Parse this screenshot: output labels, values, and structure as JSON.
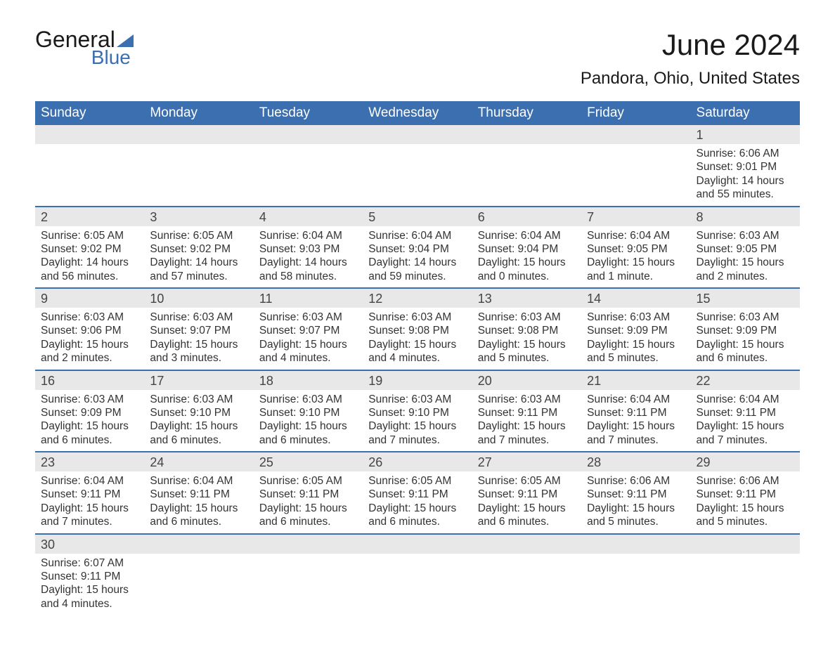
{
  "logo": {
    "text_top": "General",
    "text_bottom": "Blue",
    "accent_color": "#3b6fb0"
  },
  "title": "June 2024",
  "location": "Pandora, Ohio, United States",
  "colors": {
    "header_bg": "#3b6fb0",
    "header_text": "#ffffff",
    "daynum_bg": "#e8e8e8",
    "row_divider": "#3b6fb0",
    "body_text": "#333333",
    "page_bg": "#ffffff"
  },
  "fonts": {
    "family": "Arial",
    "title_pt": 42,
    "location_pt": 24,
    "header_pt": 19,
    "body_pt": 15.5
  },
  "day_headers": [
    "Sunday",
    "Monday",
    "Tuesday",
    "Wednesday",
    "Thursday",
    "Friday",
    "Saturday"
  ],
  "sunrise_label": "Sunrise: ",
  "sunset_label": "Sunset: ",
  "daylight_label": "Daylight: ",
  "weeks": [
    [
      null,
      null,
      null,
      null,
      null,
      null,
      {
        "n": "1",
        "sunrise": "6:06 AM",
        "sunset": "9:01 PM",
        "daylight": "14 hours and 55 minutes."
      }
    ],
    [
      {
        "n": "2",
        "sunrise": "6:05 AM",
        "sunset": "9:02 PM",
        "daylight": "14 hours and 56 minutes."
      },
      {
        "n": "3",
        "sunrise": "6:05 AM",
        "sunset": "9:02 PM",
        "daylight": "14 hours and 57 minutes."
      },
      {
        "n": "4",
        "sunrise": "6:04 AM",
        "sunset": "9:03 PM",
        "daylight": "14 hours and 58 minutes."
      },
      {
        "n": "5",
        "sunrise": "6:04 AM",
        "sunset": "9:04 PM",
        "daylight": "14 hours and 59 minutes."
      },
      {
        "n": "6",
        "sunrise": "6:04 AM",
        "sunset": "9:04 PM",
        "daylight": "15 hours and 0 minutes."
      },
      {
        "n": "7",
        "sunrise": "6:04 AM",
        "sunset": "9:05 PM",
        "daylight": "15 hours and 1 minute."
      },
      {
        "n": "8",
        "sunrise": "6:03 AM",
        "sunset": "9:05 PM",
        "daylight": "15 hours and 2 minutes."
      }
    ],
    [
      {
        "n": "9",
        "sunrise": "6:03 AM",
        "sunset": "9:06 PM",
        "daylight": "15 hours and 2 minutes."
      },
      {
        "n": "10",
        "sunrise": "6:03 AM",
        "sunset": "9:07 PM",
        "daylight": "15 hours and 3 minutes."
      },
      {
        "n": "11",
        "sunrise": "6:03 AM",
        "sunset": "9:07 PM",
        "daylight": "15 hours and 4 minutes."
      },
      {
        "n": "12",
        "sunrise": "6:03 AM",
        "sunset": "9:08 PM",
        "daylight": "15 hours and 4 minutes."
      },
      {
        "n": "13",
        "sunrise": "6:03 AM",
        "sunset": "9:08 PM",
        "daylight": "15 hours and 5 minutes."
      },
      {
        "n": "14",
        "sunrise": "6:03 AM",
        "sunset": "9:09 PM",
        "daylight": "15 hours and 5 minutes."
      },
      {
        "n": "15",
        "sunrise": "6:03 AM",
        "sunset": "9:09 PM",
        "daylight": "15 hours and 6 minutes."
      }
    ],
    [
      {
        "n": "16",
        "sunrise": "6:03 AM",
        "sunset": "9:09 PM",
        "daylight": "15 hours and 6 minutes."
      },
      {
        "n": "17",
        "sunrise": "6:03 AM",
        "sunset": "9:10 PM",
        "daylight": "15 hours and 6 minutes."
      },
      {
        "n": "18",
        "sunrise": "6:03 AM",
        "sunset": "9:10 PM",
        "daylight": "15 hours and 6 minutes."
      },
      {
        "n": "19",
        "sunrise": "6:03 AM",
        "sunset": "9:10 PM",
        "daylight": "15 hours and 7 minutes."
      },
      {
        "n": "20",
        "sunrise": "6:03 AM",
        "sunset": "9:11 PM",
        "daylight": "15 hours and 7 minutes."
      },
      {
        "n": "21",
        "sunrise": "6:04 AM",
        "sunset": "9:11 PM",
        "daylight": "15 hours and 7 minutes."
      },
      {
        "n": "22",
        "sunrise": "6:04 AM",
        "sunset": "9:11 PM",
        "daylight": "15 hours and 7 minutes."
      }
    ],
    [
      {
        "n": "23",
        "sunrise": "6:04 AM",
        "sunset": "9:11 PM",
        "daylight": "15 hours and 7 minutes."
      },
      {
        "n": "24",
        "sunrise": "6:04 AM",
        "sunset": "9:11 PM",
        "daylight": "15 hours and 6 minutes."
      },
      {
        "n": "25",
        "sunrise": "6:05 AM",
        "sunset": "9:11 PM",
        "daylight": "15 hours and 6 minutes."
      },
      {
        "n": "26",
        "sunrise": "6:05 AM",
        "sunset": "9:11 PM",
        "daylight": "15 hours and 6 minutes."
      },
      {
        "n": "27",
        "sunrise": "6:05 AM",
        "sunset": "9:11 PM",
        "daylight": "15 hours and 6 minutes."
      },
      {
        "n": "28",
        "sunrise": "6:06 AM",
        "sunset": "9:11 PM",
        "daylight": "15 hours and 5 minutes."
      },
      {
        "n": "29",
        "sunrise": "6:06 AM",
        "sunset": "9:11 PM",
        "daylight": "15 hours and 5 minutes."
      }
    ],
    [
      {
        "n": "30",
        "sunrise": "6:07 AM",
        "sunset": "9:11 PM",
        "daylight": "15 hours and 4 minutes."
      },
      null,
      null,
      null,
      null,
      null,
      null
    ]
  ]
}
